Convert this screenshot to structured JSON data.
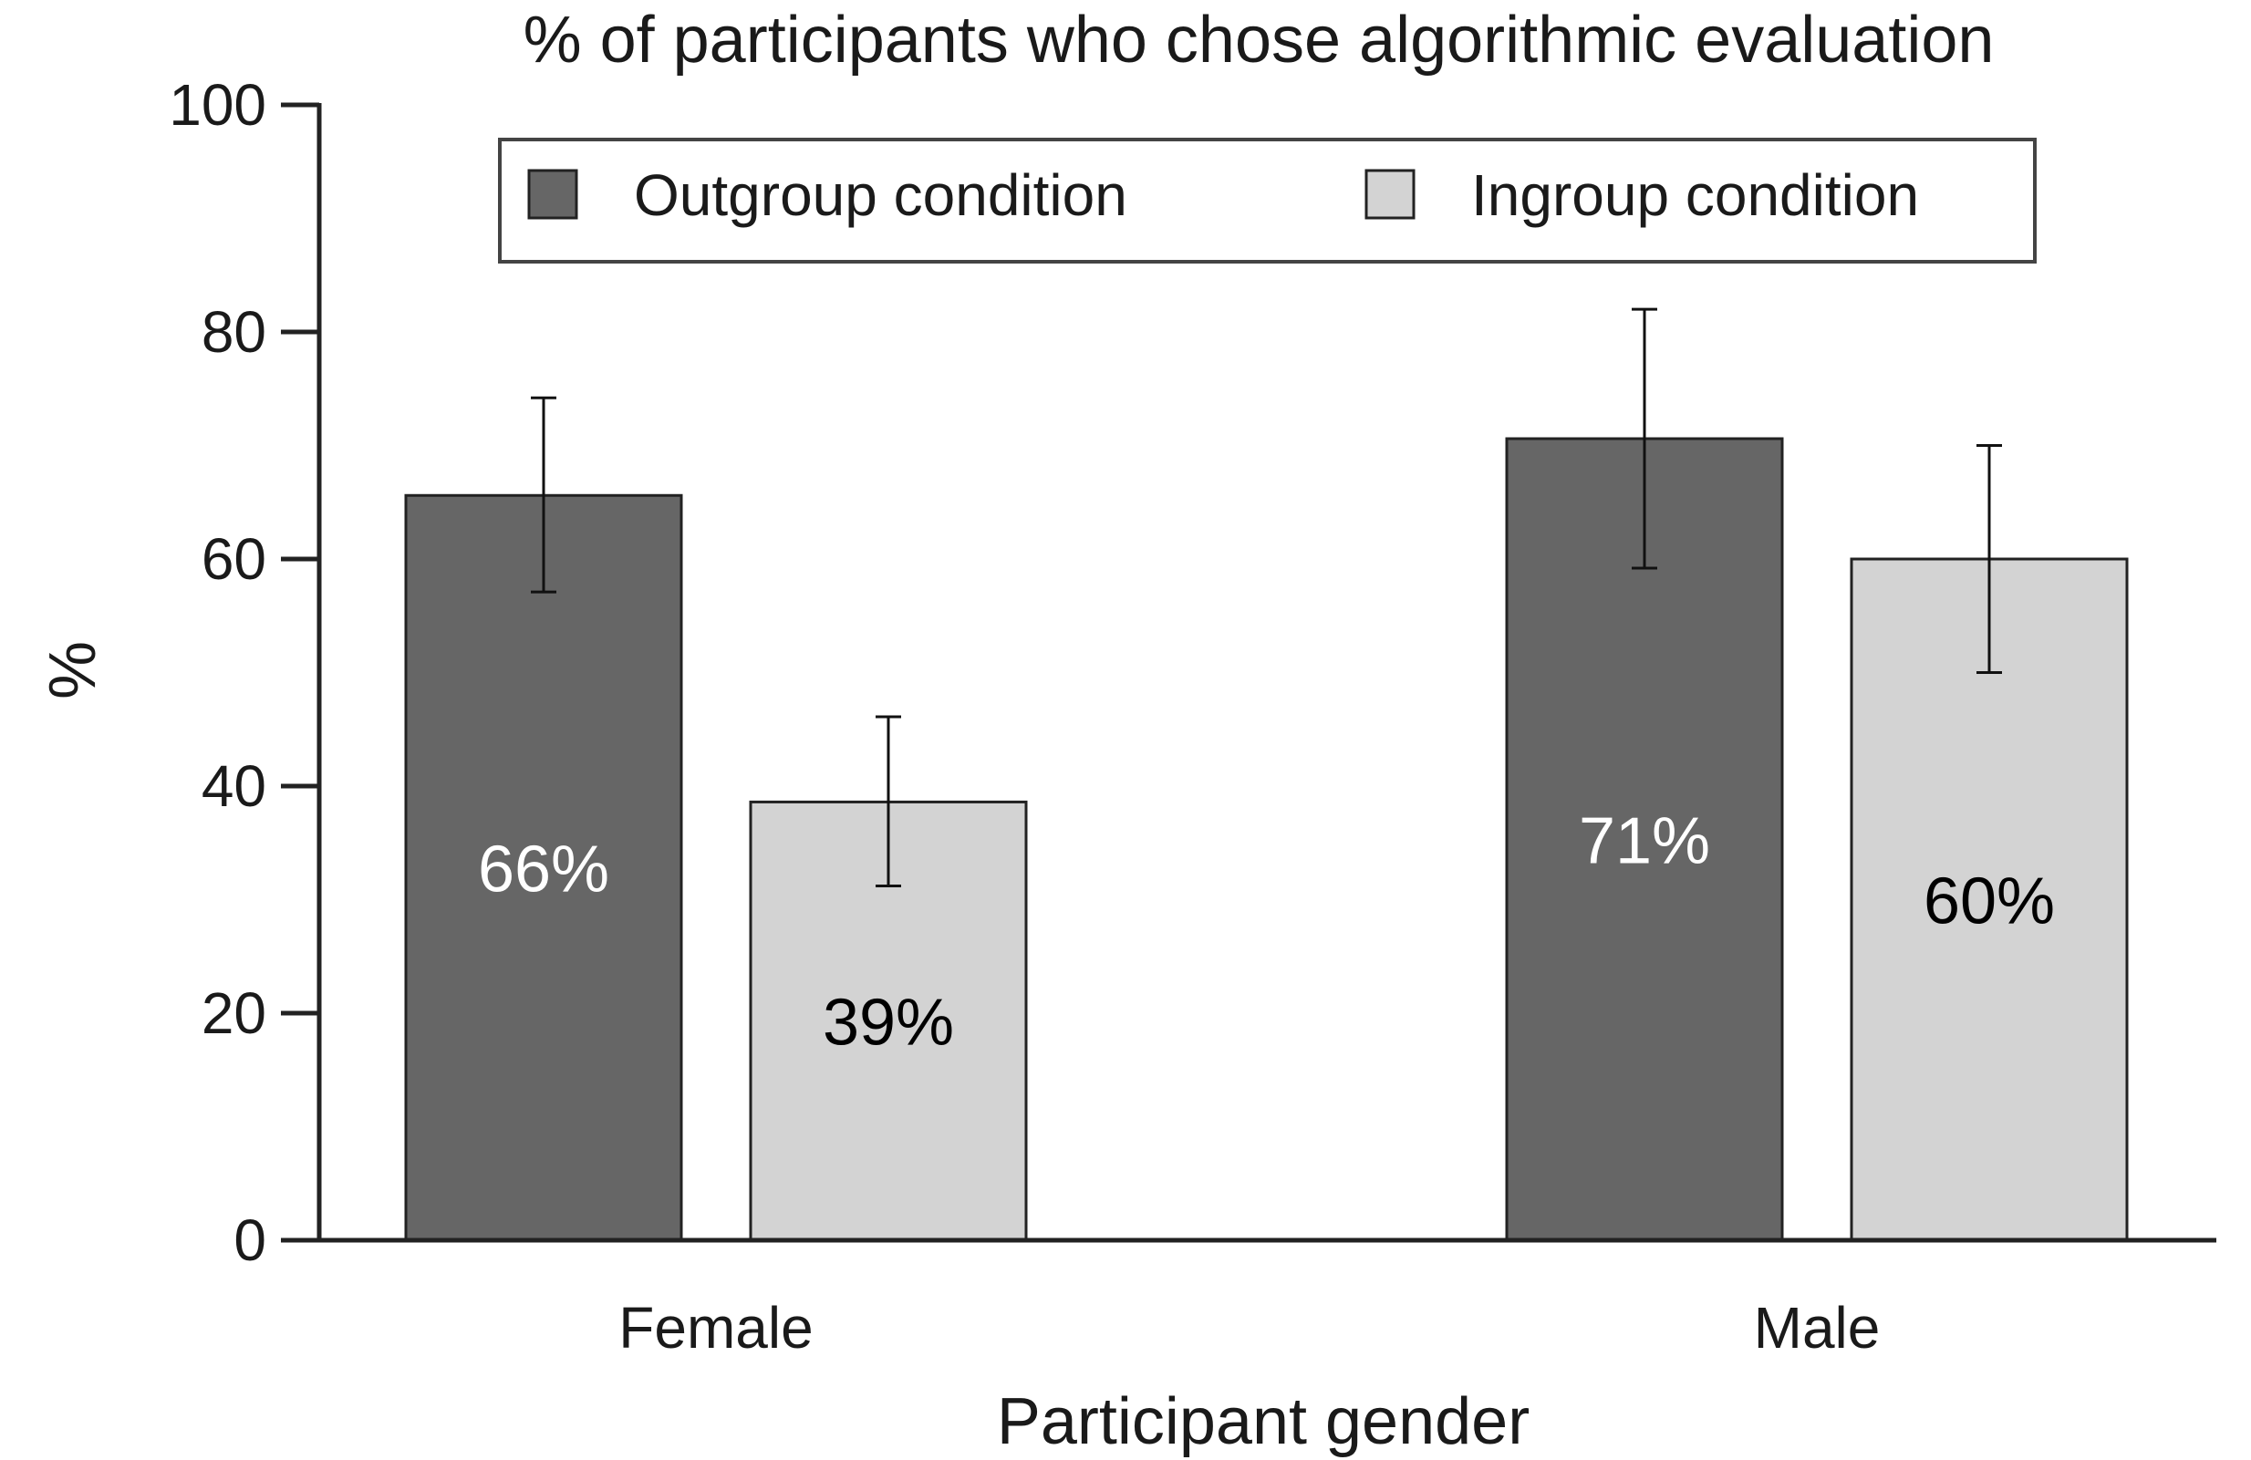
{
  "chart_data": {
    "type": "bar",
    "title": "% of participants who chose algorithmic evaluation",
    "xlabel": "Participant gender",
    "ylabel": "%",
    "ylim": [
      0,
      100
    ],
    "yticks": [
      0,
      20,
      40,
      60,
      80,
      100
    ],
    "categories": [
      "Female",
      "Male"
    ],
    "series": [
      {
        "name": "Outgroup condition",
        "color": "#666666",
        "label_color": "#ffffff",
        "values": [
          65.6,
          70.6
        ],
        "error_low": [
          57.1,
          59.2
        ],
        "error_high": [
          74.2,
          82.0
        ],
        "data_labels": [
          "66%",
          "71%"
        ]
      },
      {
        "name": "Ingroup condition",
        "color": "#d3d3d3",
        "label_color": "#000000",
        "values": [
          38.6,
          60.0
        ],
        "error_low": [
          31.2,
          50.0
        ],
        "error_high": [
          46.1,
          70.0
        ],
        "data_labels": [
          "39%",
          "60%"
        ]
      }
    ],
    "legend_position": "top-center",
    "grid": false
  }
}
